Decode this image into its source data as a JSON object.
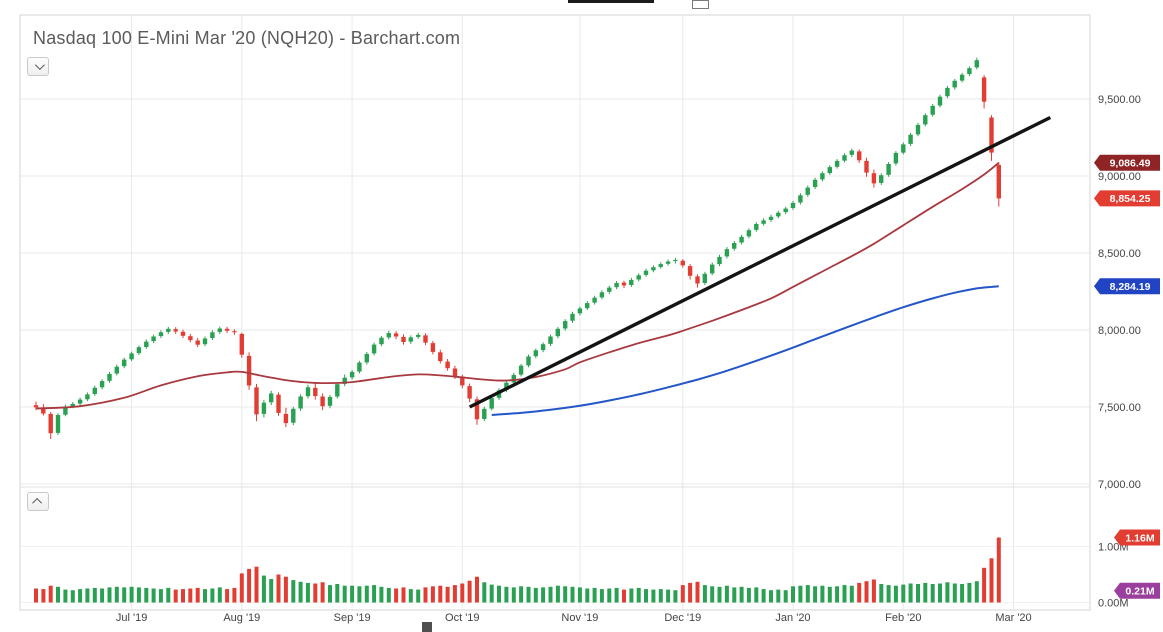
{
  "chart": {
    "title": "Nasdaq 100 E-Mini Mar '20 (NQH20) - Barchart.com",
    "icons": {
      "tools_dropdown": "chevron-down",
      "volume_collapse": "chevron-up"
    }
  },
  "chart_data": {
    "type": "candlestick",
    "title": "Nasdaq 100 E-Mini Mar '20 (NQH20) - Barchart.com",
    "symbol": "NQH20",
    "price_axis": {
      "side": "right",
      "range": [
        6950,
        10050
      ],
      "ticks": [
        {
          "label": "9,500.00",
          "value": 9500
        },
        {
          "label": "9,000.00",
          "value": 9000
        },
        {
          "label": "8,500.00",
          "value": 8500
        },
        {
          "label": "8,000.00",
          "value": 8000
        },
        {
          "label": "7,500.00",
          "value": 7500
        },
        {
          "label": "7,000.00",
          "value": 7000
        }
      ]
    },
    "volume_axis": {
      "ticks": [
        {
          "label": "1.00M",
          "value": 1.0
        },
        {
          "label": "0.00M",
          "value": 0.0
        }
      ]
    },
    "x_axis": {
      "ticks": [
        {
          "label": "Jul '19",
          "index": 13
        },
        {
          "label": "Aug '19",
          "index": 28
        },
        {
          "label": "Sep '19",
          "index": 43
        },
        {
          "label": "Oct '19",
          "index": 58
        },
        {
          "label": "Nov '19",
          "index": 74
        },
        {
          "label": "Dec '19",
          "index": 88
        },
        {
          "label": "Jan '20",
          "index": 103
        },
        {
          "label": "Feb '20",
          "index": 118
        },
        {
          "label": "Mar '20",
          "index": 133
        }
      ]
    },
    "candles": {
      "columns": [
        "open",
        "high",
        "low",
        "close",
        "volume_millions"
      ],
      "up_color": "#2aa052",
      "down_color": "#e23d33",
      "rows": [
        [
          7512,
          7535,
          7480,
          7498,
          0.25
        ],
        [
          7496,
          7518,
          7445,
          7458,
          0.24
        ],
        [
          7455,
          7468,
          7292,
          7330,
          0.3
        ],
        [
          7332,
          7460,
          7318,
          7448,
          0.28
        ],
        [
          7450,
          7515,
          7440,
          7502,
          0.23
        ],
        [
          7504,
          7532,
          7492,
          7520,
          0.22
        ],
        [
          7522,
          7562,
          7510,
          7548,
          0.24
        ],
        [
          7550,
          7595,
          7538,
          7582,
          0.25
        ],
        [
          7585,
          7638,
          7572,
          7625,
          0.26
        ],
        [
          7628,
          7680,
          7615,
          7668,
          0.25
        ],
        [
          7670,
          7728,
          7658,
          7715,
          0.27
        ],
        [
          7718,
          7775,
          7705,
          7762,
          0.28
        ],
        [
          7765,
          7820,
          7752,
          7808,
          0.27
        ],
        [
          7810,
          7860,
          7798,
          7848,
          0.28
        ],
        [
          7850,
          7900,
          7838,
          7888,
          0.27
        ],
        [
          7890,
          7938,
          7878,
          7925,
          0.26
        ],
        [
          7928,
          7970,
          7915,
          7958,
          0.25
        ],
        [
          7960,
          7998,
          7948,
          7985,
          0.24
        ],
        [
          7988,
          8020,
          7975,
          8008,
          0.26
        ],
        [
          8005,
          8018,
          7975,
          7990,
          0.23
        ],
        [
          7988,
          8002,
          7948,
          7962,
          0.24
        ],
        [
          7960,
          7975,
          7920,
          7935,
          0.25
        ],
        [
          7932,
          7948,
          7888,
          7905,
          0.26
        ],
        [
          7908,
          7958,
          7895,
          7945,
          0.24
        ],
        [
          7948,
          7998,
          7935,
          7985,
          0.25
        ],
        [
          7988,
          8022,
          7975,
          8010,
          0.27
        ],
        [
          8008,
          8020,
          7980,
          7995,
          0.24
        ],
        [
          7992,
          8005,
          7968,
          7985,
          0.26
        ],
        [
          7975,
          7982,
          7820,
          7840,
          0.52
        ],
        [
          7832,
          7855,
          7612,
          7640,
          0.6
        ],
        [
          7628,
          7650,
          7408,
          7452,
          0.64
        ],
        [
          7455,
          7545,
          7432,
          7528,
          0.48
        ],
        [
          7530,
          7605,
          7512,
          7588,
          0.42
        ],
        [
          7580,
          7595,
          7442,
          7462,
          0.5
        ],
        [
          7455,
          7495,
          7370,
          7395,
          0.46
        ],
        [
          7398,
          7502,
          7382,
          7488,
          0.4
        ],
        [
          7490,
          7582,
          7475,
          7568,
          0.37
        ],
        [
          7570,
          7645,
          7555,
          7628,
          0.35
        ],
        [
          7625,
          7652,
          7548,
          7572,
          0.34
        ],
        [
          7568,
          7588,
          7480,
          7505,
          0.36
        ],
        [
          7508,
          7578,
          7492,
          7565,
          0.31
        ],
        [
          7568,
          7660,
          7555,
          7648,
          0.33
        ],
        [
          7650,
          7712,
          7635,
          7690,
          0.3
        ],
        [
          7692,
          7740,
          7678,
          7728,
          0.3
        ],
        [
          7730,
          7800,
          7718,
          7788,
          0.29
        ],
        [
          7790,
          7858,
          7776,
          7845,
          0.3
        ],
        [
          7848,
          7918,
          7835,
          7905,
          0.31
        ],
        [
          7908,
          7962,
          7895,
          7950,
          0.28
        ],
        [
          7952,
          7995,
          7938,
          7980,
          0.26
        ],
        [
          7978,
          7992,
          7940,
          7958,
          0.25
        ],
        [
          7955,
          7972,
          7905,
          7922,
          0.27
        ],
        [
          7925,
          7965,
          7910,
          7952,
          0.24
        ],
        [
          7955,
          7982,
          7942,
          7968,
          0.23
        ],
        [
          7965,
          7978,
          7902,
          7918,
          0.27
        ],
        [
          7915,
          7930,
          7842,
          7858,
          0.29
        ],
        [
          7855,
          7872,
          7782,
          7798,
          0.3
        ],
        [
          7795,
          7812,
          7735,
          7752,
          0.28
        ],
        [
          7750,
          7768,
          7682,
          7700,
          0.31
        ],
        [
          7698,
          7710,
          7622,
          7640,
          0.34
        ],
        [
          7636,
          7652,
          7532,
          7555,
          0.39
        ],
        [
          7550,
          7568,
          7385,
          7420,
          0.46
        ],
        [
          7422,
          7502,
          7408,
          7488,
          0.36
        ],
        [
          7490,
          7572,
          7478,
          7558,
          0.32
        ],
        [
          7560,
          7622,
          7546,
          7608,
          0.3
        ],
        [
          7610,
          7672,
          7596,
          7658,
          0.28
        ],
        [
          7660,
          7722,
          7646,
          7708,
          0.27
        ],
        [
          7710,
          7780,
          7698,
          7768,
          0.29
        ],
        [
          7770,
          7840,
          7758,
          7828,
          0.28
        ],
        [
          7830,
          7880,
          7816,
          7868,
          0.26
        ],
        [
          7870,
          7920,
          7856,
          7908,
          0.27
        ],
        [
          7910,
          7970,
          7896,
          7958,
          0.28
        ],
        [
          7960,
          8020,
          7946,
          8008,
          0.3
        ],
        [
          8010,
          8070,
          7996,
          8058,
          0.29
        ],
        [
          8060,
          8118,
          8046,
          8105,
          0.28
        ],
        [
          8108,
          8152,
          8095,
          8140,
          0.27
        ],
        [
          8142,
          8188,
          8130,
          8175,
          0.25
        ],
        [
          8178,
          8222,
          8165,
          8210,
          0.26
        ],
        [
          8212,
          8258,
          8200,
          8245,
          0.24
        ],
        [
          8248,
          8288,
          8235,
          8275,
          0.25
        ],
        [
          8278,
          8318,
          8265,
          8305,
          0.26
        ],
        [
          8308,
          8320,
          8272,
          8290,
          0.23
        ],
        [
          8292,
          8338,
          8280,
          8325,
          0.25
        ],
        [
          8328,
          8368,
          8315,
          8355,
          0.26
        ],
        [
          8358,
          8398,
          8345,
          8385,
          0.24
        ],
        [
          8388,
          8420,
          8375,
          8408,
          0.23
        ],
        [
          8410,
          8440,
          8398,
          8428,
          0.24
        ],
        [
          8430,
          8458,
          8418,
          8445,
          0.23
        ],
        [
          8448,
          8468,
          8432,
          8455,
          0.22
        ],
        [
          8450,
          8460,
          8405,
          8420,
          0.31
        ],
        [
          8415,
          8428,
          8328,
          8352,
          0.35
        ],
        [
          8348,
          8362,
          8275,
          8302,
          0.37
        ],
        [
          8305,
          8378,
          8292,
          8365,
          0.31
        ],
        [
          8368,
          8438,
          8355,
          8425,
          0.29
        ],
        [
          8428,
          8488,
          8415,
          8475,
          0.28
        ],
        [
          8478,
          8538,
          8465,
          8525,
          0.3
        ],
        [
          8528,
          8578,
          8515,
          8565,
          0.27
        ],
        [
          8568,
          8618,
          8555,
          8605,
          0.28
        ],
        [
          8608,
          8660,
          8595,
          8648,
          0.26
        ],
        [
          8650,
          8700,
          8638,
          8688,
          0.27
        ],
        [
          8690,
          8725,
          8678,
          8712,
          0.24
        ],
        [
          8715,
          8748,
          8702,
          8735,
          0.22
        ],
        [
          8738,
          8775,
          8725,
          8762,
          0.23
        ],
        [
          8765,
          8800,
          8752,
          8788,
          0.22
        ],
        [
          8792,
          8838,
          8780,
          8825,
          0.29
        ],
        [
          8828,
          8888,
          8815,
          8875,
          0.3
        ],
        [
          8878,
          8938,
          8865,
          8925,
          0.31
        ],
        [
          8928,
          8988,
          8915,
          8975,
          0.29
        ],
        [
          8978,
          9030,
          8965,
          9018,
          0.3
        ],
        [
          9020,
          9070,
          9008,
          9058,
          0.28
        ],
        [
          9060,
          9110,
          9048,
          9098,
          0.29
        ],
        [
          9100,
          9148,
          9088,
          9135,
          0.31
        ],
        [
          9138,
          9178,
          9122,
          9165,
          0.3
        ],
        [
          9160,
          9172,
          9085,
          9102,
          0.35
        ],
        [
          9098,
          9118,
          8995,
          9022,
          0.38
        ],
        [
          9018,
          9042,
          8925,
          8952,
          0.41
        ],
        [
          8955,
          9018,
          8942,
          9005,
          0.33
        ],
        [
          9008,
          9090,
          8995,
          9078,
          0.31
        ],
        [
          9082,
          9162,
          9068,
          9150,
          0.3
        ],
        [
          9152,
          9218,
          9140,
          9205,
          0.32
        ],
        [
          9208,
          9280,
          9195,
          9268,
          0.34
        ],
        [
          9270,
          9345,
          9258,
          9332,
          0.33
        ],
        [
          9335,
          9408,
          9322,
          9395,
          0.35
        ],
        [
          9398,
          9468,
          9385,
          9455,
          0.33
        ],
        [
          9458,
          9528,
          9445,
          9515,
          0.34
        ],
        [
          9518,
          9585,
          9505,
          9572,
          0.36
        ],
        [
          9575,
          9630,
          9562,
          9618,
          0.34
        ],
        [
          9620,
          9670,
          9608,
          9658,
          0.33
        ],
        [
          9662,
          9712,
          9648,
          9700,
          0.35
        ],
        [
          9705,
          9768,
          9692,
          9752,
          0.38
        ],
        [
          9640,
          9655,
          9438,
          9482,
          0.62
        ],
        [
          9380,
          9395,
          9098,
          9152,
          0.79
        ],
        [
          9072,
          9088,
          8802,
          8854.25,
          1.16
        ]
      ]
    },
    "overlays": {
      "red_ma": {
        "name": "moving-average-red",
        "color": "#a8393f",
        "last_value": 9086.49,
        "points": [
          [
            0,
            7490
          ],
          [
            6,
            7505
          ],
          [
            12,
            7560
          ],
          [
            17,
            7640
          ],
          [
            22,
            7700
          ],
          [
            26,
            7725
          ],
          [
            28,
            7728
          ],
          [
            31,
            7700
          ],
          [
            35,
            7668
          ],
          [
            39,
            7655
          ],
          [
            43,
            7662
          ],
          [
            48,
            7695
          ],
          [
            52,
            7712
          ],
          [
            55,
            7705
          ],
          [
            58,
            7692
          ],
          [
            61,
            7678
          ],
          [
            64,
            7672
          ],
          [
            68,
            7695
          ],
          [
            72,
            7745
          ],
          [
            74,
            7790
          ],
          [
            78,
            7855
          ],
          [
            82,
            7915
          ],
          [
            86,
            7965
          ],
          [
            88,
            7995
          ],
          [
            92,
            8060
          ],
          [
            96,
            8130
          ],
          [
            100,
            8205
          ],
          [
            103,
            8280
          ],
          [
            107,
            8380
          ],
          [
            111,
            8480
          ],
          [
            114,
            8560
          ],
          [
            118,
            8680
          ],
          [
            122,
            8800
          ],
          [
            126,
            8915
          ],
          [
            129,
            9010
          ],
          [
            131,
            9086.49
          ]
        ]
      },
      "blue_ma": {
        "name": "moving-average-blue",
        "color": "#2356c7",
        "last_value": 8284.19,
        "points": [
          [
            62,
            7448
          ],
          [
            66,
            7462
          ],
          [
            70,
            7482
          ],
          [
            74,
            7508
          ],
          [
            78,
            7542
          ],
          [
            82,
            7582
          ],
          [
            86,
            7628
          ],
          [
            90,
            7678
          ],
          [
            94,
            7735
          ],
          [
            98,
            7800
          ],
          [
            102,
            7868
          ],
          [
            106,
            7940
          ],
          [
            110,
            8012
          ],
          [
            114,
            8082
          ],
          [
            118,
            8148
          ],
          [
            122,
            8205
          ],
          [
            125,
            8242
          ],
          [
            128,
            8270
          ],
          [
            130,
            8280
          ],
          [
            131,
            8284.19
          ]
        ]
      },
      "trendline": {
        "name": "drawn-trendline",
        "color": "#141414",
        "points": [
          [
            59,
            7500
          ],
          [
            138,
            9380
          ]
        ]
      }
    },
    "badges": {
      "price": [
        {
          "label": "9,086.49",
          "value": 9086.49,
          "color": "#8e2425"
        },
        {
          "label": "8,854.25",
          "value": 8854.25,
          "color": "#e23d33"
        },
        {
          "label": "8,284.19",
          "value": 8284.19,
          "color": "#2144c4"
        }
      ],
      "volume": [
        {
          "label": "1.16M",
          "value": 1.16,
          "color": "#e23d33"
        },
        {
          "label": "0.21M",
          "value": 0.21,
          "color": "#9a3f9e"
        }
      ]
    }
  }
}
